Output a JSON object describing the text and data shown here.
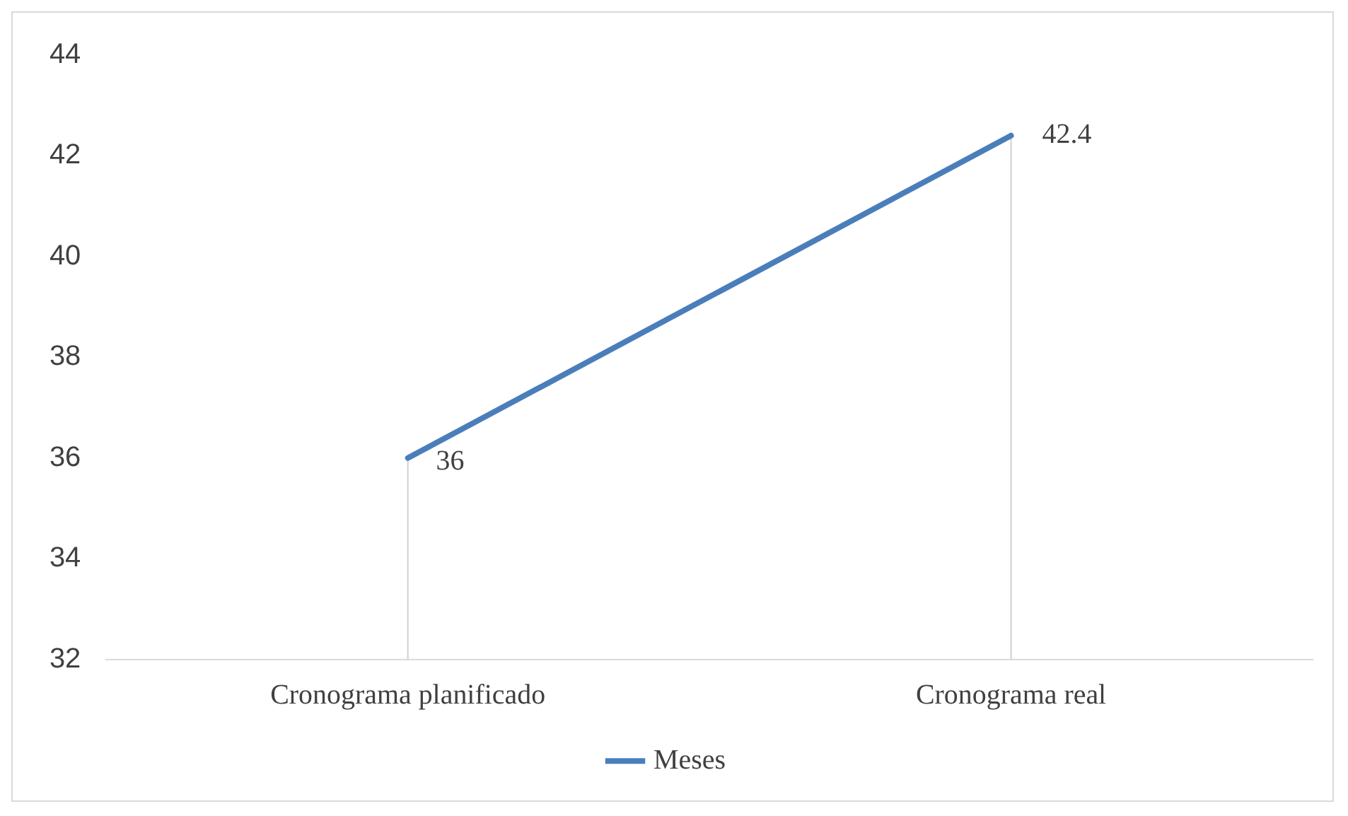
{
  "chart_data": {
    "type": "line",
    "categories": [
      "Cronograma planificado",
      "Cronograma real"
    ],
    "series": [
      {
        "name": "Meses",
        "color": "#4a7ebb",
        "values": [
          36,
          42.4
        ]
      }
    ],
    "ylim": [
      32,
      44
    ],
    "yticks": [
      32,
      34,
      36,
      38,
      40,
      42,
      44
    ],
    "grid": "x",
    "legend": "bottom",
    "marker": "none",
    "line_style": "solid",
    "data_labels": true
  }
}
